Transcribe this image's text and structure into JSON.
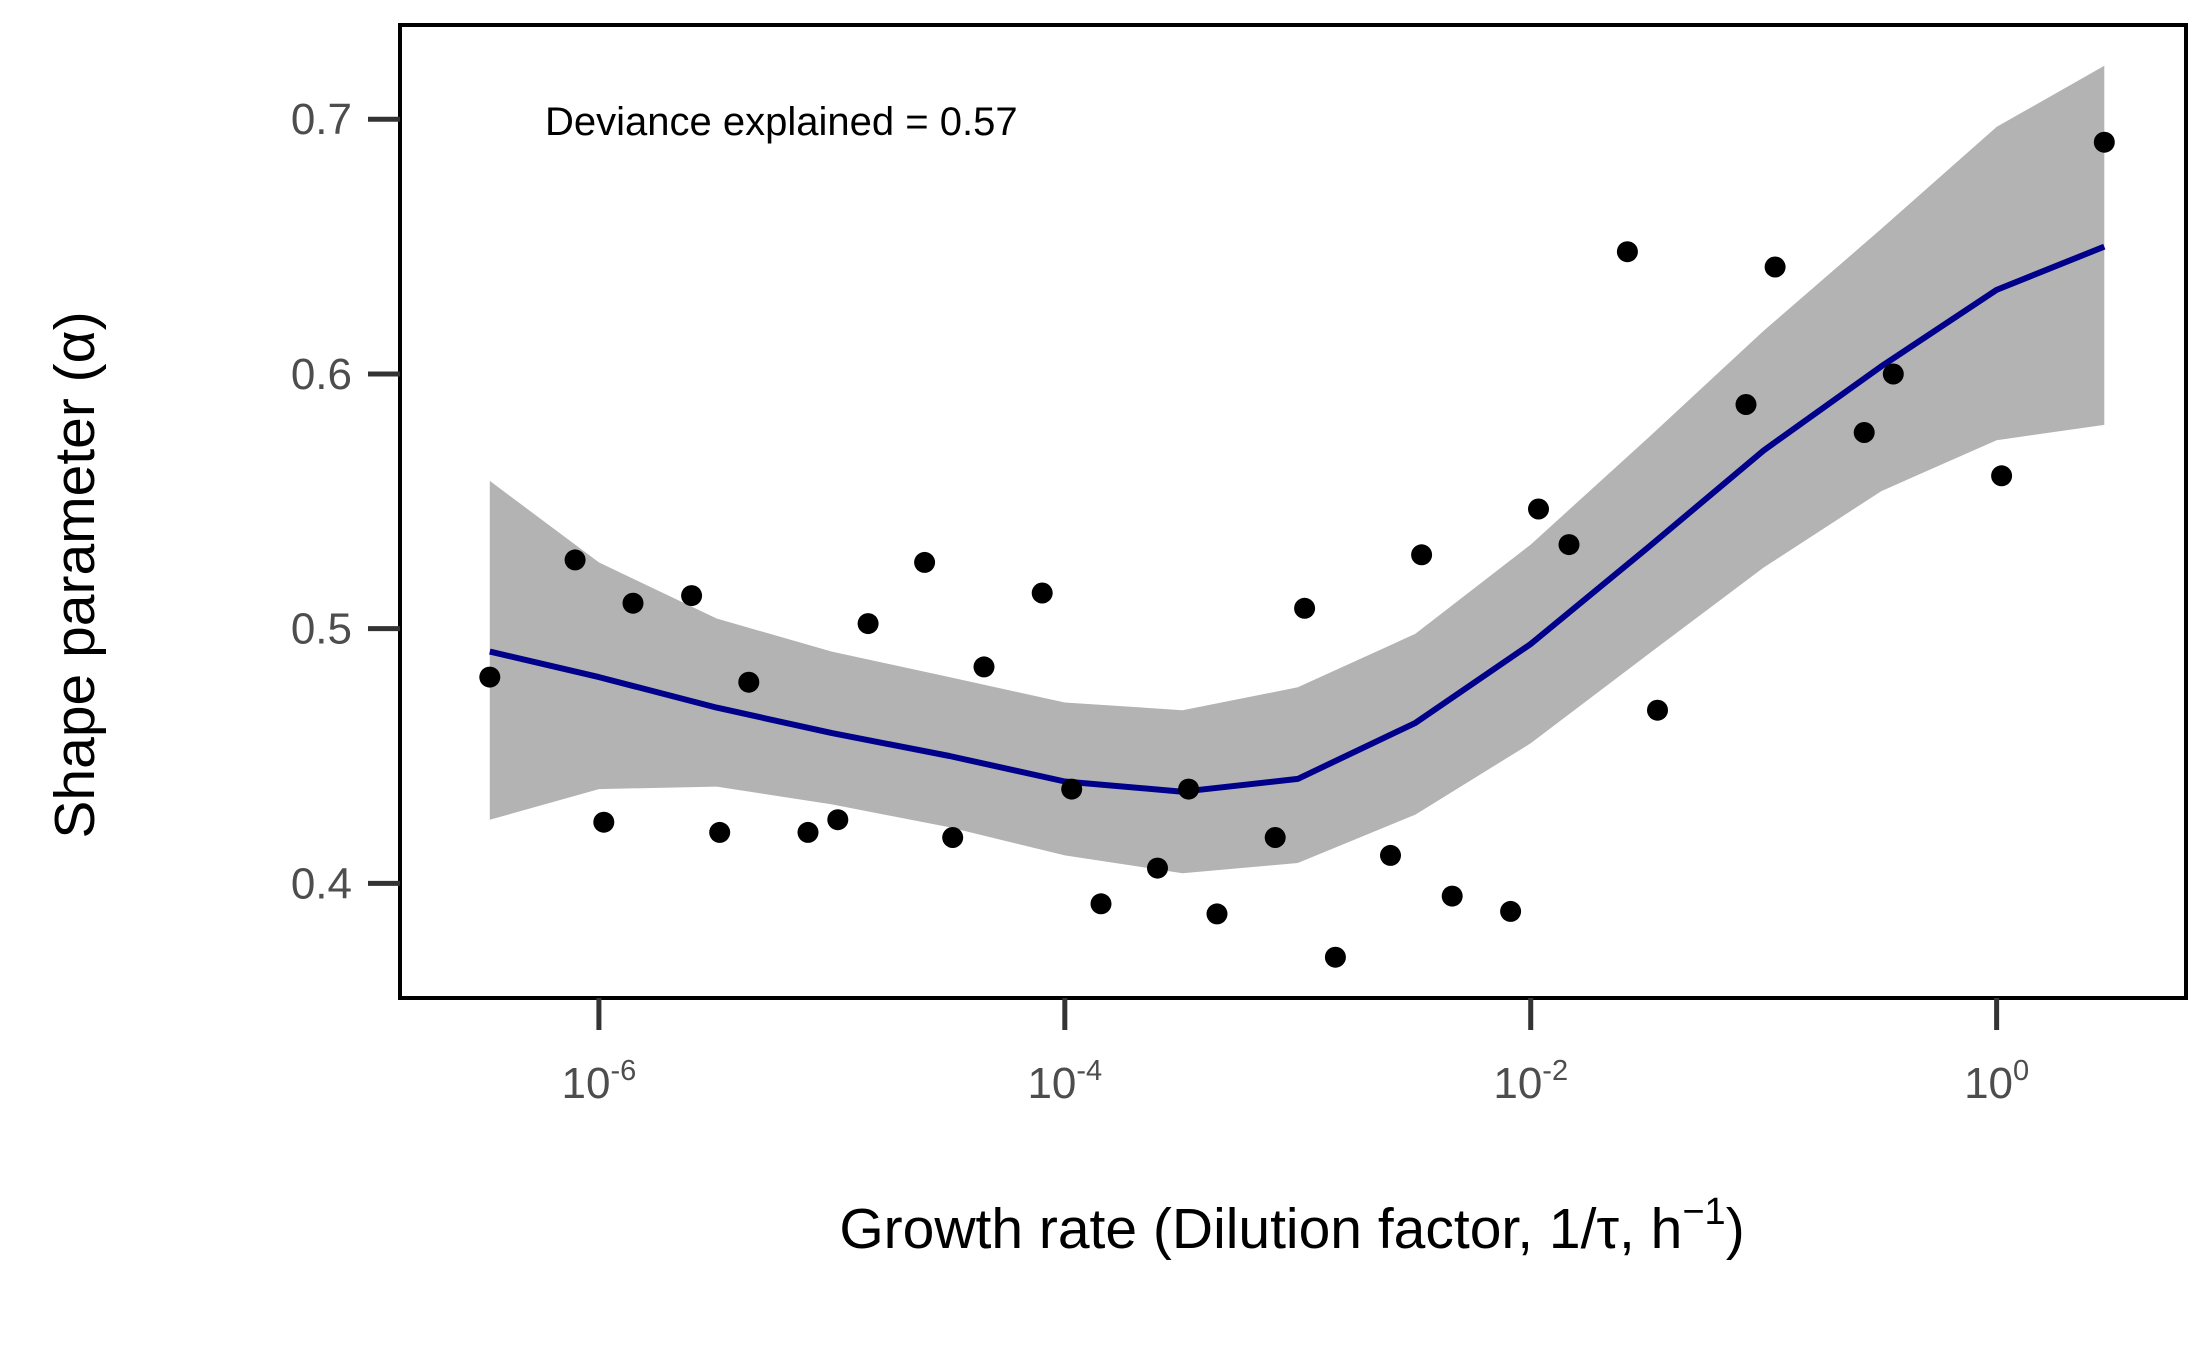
{
  "chart_data": {
    "type": "scatter",
    "title": "",
    "annotation": "Deviance explained =  0.57",
    "xlabel": {
      "prefix": "Growth rate (Dilution factor, 1/τ, h",
      "superscript": "−1",
      "suffix": ")"
    },
    "ylabel": "Shape parameter (α)",
    "x_scale": "log10",
    "xlim": [
      1.4e-07,
      6.5
    ],
    "ylim": [
      0.355,
      0.737
    ],
    "x_ticks": [
      {
        "value": 1e-06,
        "base": "10",
        "exponent": "-6"
      },
      {
        "value": 0.0001,
        "base": "10",
        "exponent": "-4"
      },
      {
        "value": 0.01,
        "base": "10",
        "exponent": "-2"
      },
      {
        "value": 1,
        "base": "10",
        "exponent": "0"
      }
    ],
    "y_ticks": [
      {
        "value": 0.4,
        "label": "0.4"
      },
      {
        "value": 0.5,
        "label": "0.5"
      },
      {
        "value": 0.6,
        "label": "0.6"
      },
      {
        "value": 0.7,
        "label": "0.7"
      }
    ],
    "grid": false,
    "legend": "none",
    "colors": {
      "points": "#000000",
      "fit_line": "#00008b",
      "confidence_band": "#b3b3b3",
      "axis": "#000000",
      "tick_text": "#4d4d4d"
    },
    "points": [
      {
        "x": 3.4e-07,
        "y": 0.481
      },
      {
        "x": 7.9e-07,
        "y": 0.527
      },
      {
        "x": 1.05e-06,
        "y": 0.424
      },
      {
        "x": 1.4e-06,
        "y": 0.51
      },
      {
        "x": 2.5e-06,
        "y": 0.513
      },
      {
        "x": 3.3e-06,
        "y": 0.42
      },
      {
        "x": 4.4e-06,
        "y": 0.479
      },
      {
        "x": 7.9e-06,
        "y": 0.42
      },
      {
        "x": 1.06e-05,
        "y": 0.425
      },
      {
        "x": 1.43e-05,
        "y": 0.502
      },
      {
        "x": 2.5e-05,
        "y": 0.526
      },
      {
        "x": 3.3e-05,
        "y": 0.418
      },
      {
        "x": 4.5e-05,
        "y": 0.485
      },
      {
        "x": 8e-05,
        "y": 0.514
      },
      {
        "x": 0.000107,
        "y": 0.437
      },
      {
        "x": 0.000143,
        "y": 0.392
      },
      {
        "x": 0.00025,
        "y": 0.406
      },
      {
        "x": 0.00034,
        "y": 0.437
      },
      {
        "x": 0.00045,
        "y": 0.388
      },
      {
        "x": 0.0008,
        "y": 0.418
      },
      {
        "x": 0.00107,
        "y": 0.508
      },
      {
        "x": 0.00145,
        "y": 0.371
      },
      {
        "x": 0.0025,
        "y": 0.411
      },
      {
        "x": 0.0034,
        "y": 0.529
      },
      {
        "x": 0.0046,
        "y": 0.395
      },
      {
        "x": 0.0082,
        "y": 0.389
      },
      {
        "x": 0.0108,
        "y": 0.547
      },
      {
        "x": 0.0146,
        "y": 0.533
      },
      {
        "x": 0.026,
        "y": 0.648
      },
      {
        "x": 0.035,
        "y": 0.468
      },
      {
        "x": 0.084,
        "y": 0.588
      },
      {
        "x": 0.112,
        "y": 0.642
      },
      {
        "x": 0.27,
        "y": 0.577
      },
      {
        "x": 0.36,
        "y": 0.6
      },
      {
        "x": 1.05,
        "y": 0.56
      },
      {
        "x": 2.9,
        "y": 0.691
      }
    ],
    "fit": [
      {
        "x": 3.4e-07,
        "y": 0.491,
        "lower": 0.425,
        "upper": 0.558
      },
      {
        "x": 1e-06,
        "y": 0.481,
        "lower": 0.437,
        "upper": 0.526
      },
      {
        "x": 3.2e-06,
        "y": 0.469,
        "lower": 0.438,
        "upper": 0.504
      },
      {
        "x": 1e-05,
        "y": 0.459,
        "lower": 0.431,
        "upper": 0.491
      },
      {
        "x": 3.2e-05,
        "y": 0.45,
        "lower": 0.422,
        "upper": 0.481
      },
      {
        "x": 0.0001,
        "y": 0.44,
        "lower": 0.411,
        "upper": 0.471
      },
      {
        "x": 0.00032,
        "y": 0.436,
        "lower": 0.404,
        "upper": 0.468
      },
      {
        "x": 0.001,
        "y": 0.441,
        "lower": 0.408,
        "upper": 0.477
      },
      {
        "x": 0.0032,
        "y": 0.463,
        "lower": 0.427,
        "upper": 0.498
      },
      {
        "x": 0.01,
        "y": 0.494,
        "lower": 0.455,
        "upper": 0.533
      },
      {
        "x": 0.032,
        "y": 0.532,
        "lower": 0.49,
        "upper": 0.575
      },
      {
        "x": 0.1,
        "y": 0.57,
        "lower": 0.524,
        "upper": 0.617
      },
      {
        "x": 0.32,
        "y": 0.603,
        "lower": 0.554,
        "upper": 0.657
      },
      {
        "x": 1,
        "y": 0.633,
        "lower": 0.574,
        "upper": 0.697
      },
      {
        "x": 2.9,
        "y": 0.65,
        "lower": 0.58,
        "upper": 0.721
      }
    ]
  }
}
